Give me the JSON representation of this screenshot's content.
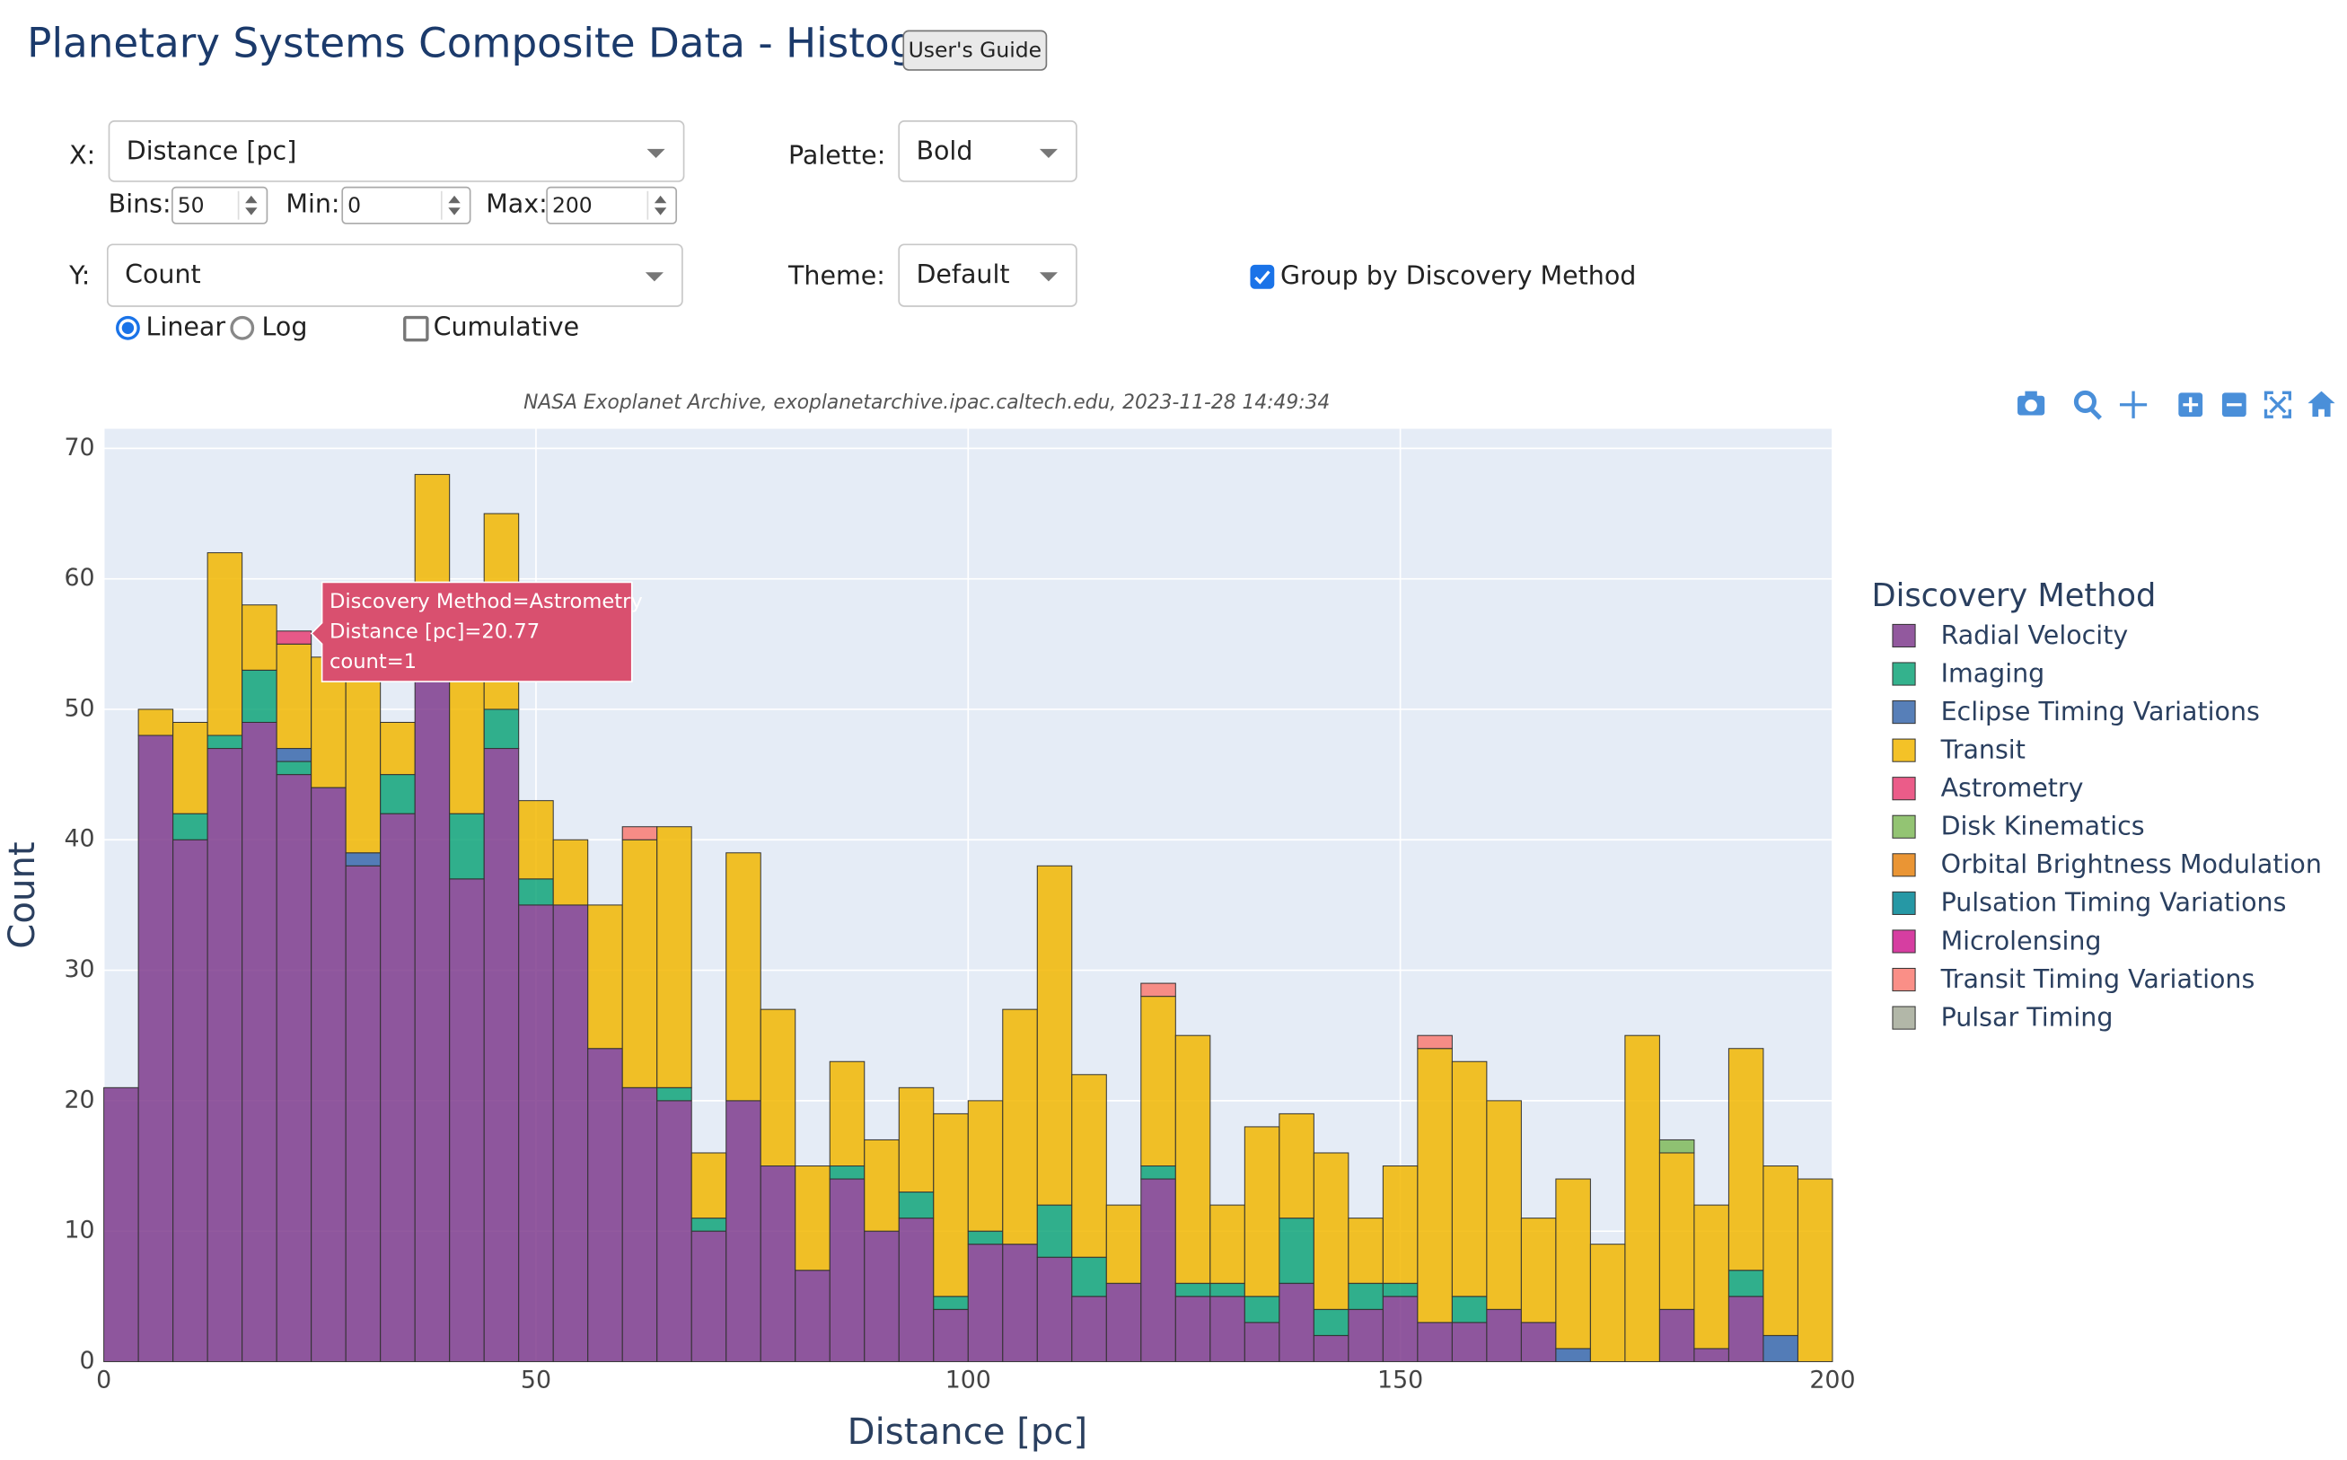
{
  "header": {
    "title": "Planetary Systems Composite Data - Histogram",
    "guide_button": "User's Guide"
  },
  "controls": {
    "x_label": "X:",
    "x_value": "Distance [pc]",
    "bins_label": "Bins:",
    "bins": 50,
    "min_label": "Min:",
    "min": 0,
    "max_label": "Max:",
    "max": 200,
    "palette_label": "Palette:",
    "palette": "Bold",
    "y_label": "Y:",
    "y_value": "Count",
    "linear": "Linear",
    "log": "Log",
    "cumulative": "Cumulative",
    "theme_label": "Theme:",
    "theme": "Default",
    "group": "Group by Discovery Method"
  },
  "chart_data": {
    "type": "histogram",
    "stacked": true,
    "subtitle": "NASA Exoplanet Archive, exoplanetarchive.ipac.caltech.edu, 2023-11-28 14:49:34",
    "x_label": "Distance [pc]",
    "y_label": "Count",
    "legend_title": "Discovery Method",
    "legend_position": "right",
    "xlim": [
      0,
      200
    ],
    "xticks": [
      0,
      50,
      100,
      150,
      200
    ],
    "ylim": [
      0,
      71.5
    ],
    "yticks": [
      0,
      10,
      20,
      30,
      40,
      50,
      60,
      70
    ],
    "grid": true,
    "bins": [
      0,
      4,
      8,
      12,
      16,
      20,
      24,
      28,
      32,
      36,
      40,
      44,
      48,
      52,
      56,
      60,
      64,
      68,
      72,
      76,
      80,
      84,
      88,
      92,
      96,
      100,
      104,
      108,
      112,
      116,
      120,
      124,
      128,
      132,
      136,
      140,
      144,
      148,
      152,
      156,
      160,
      164,
      168,
      172,
      176,
      180,
      184,
      188,
      192,
      196,
      200
    ],
    "series": [
      {
        "name": "Radial Velocity",
        "color": "#7F3C8D",
        "values": [
          21,
          48,
          40,
          47,
          49,
          45,
          44,
          38,
          42,
          53,
          37,
          47,
          35,
          35,
          24,
          21,
          20,
          10,
          20,
          15,
          7,
          14,
          10,
          11,
          4,
          9,
          9,
          8,
          5,
          6,
          14,
          5,
          5,
          3,
          6,
          2,
          4,
          5,
          3,
          3,
          4,
          3,
          0,
          0,
          0,
          4,
          1,
          5,
          0,
          0
        ]
      },
      {
        "name": "Imaging",
        "color": "#11A579",
        "values": [
          0,
          0,
          2,
          1,
          4,
          1,
          0,
          0,
          3,
          0,
          5,
          3,
          2,
          0,
          0,
          0,
          1,
          1,
          0,
          0,
          0,
          1,
          0,
          2,
          1,
          1,
          0,
          4,
          3,
          0,
          1,
          1,
          1,
          2,
          5,
          2,
          2,
          1,
          0,
          2,
          0,
          0,
          0,
          0,
          0,
          0,
          0,
          2,
          0,
          0
        ]
      },
      {
        "name": "Eclipse Timing Variations",
        "color": "#3969AC",
        "values": [
          0,
          0,
          0,
          0,
          0,
          1,
          0,
          1,
          0,
          0,
          0,
          0,
          0,
          0,
          0,
          0,
          0,
          0,
          0,
          0,
          0,
          0,
          0,
          0,
          0,
          0,
          0,
          0,
          0,
          0,
          0,
          0,
          0,
          0,
          0,
          0,
          0,
          0,
          0,
          0,
          0,
          0,
          1,
          0,
          0,
          0,
          0,
          0,
          2,
          0
        ]
      },
      {
        "name": "Transit",
        "color": "#F2B701",
        "values": [
          0,
          2,
          7,
          14,
          5,
          8,
          10,
          15,
          4,
          15,
          13,
          15,
          6,
          5,
          11,
          19,
          20,
          5,
          19,
          12,
          8,
          8,
          7,
          8,
          14,
          10,
          18,
          26,
          14,
          6,
          13,
          19,
          6,
          13,
          8,
          12,
          5,
          9,
          21,
          18,
          16,
          8,
          13,
          9,
          25,
          12,
          11,
          17,
          13,
          14
        ]
      },
      {
        "name": "Astrometry",
        "color": "#E73F74",
        "values": [
          0,
          0,
          0,
          0,
          0,
          1,
          0,
          0,
          0,
          0,
          0,
          0,
          0,
          0,
          0,
          0,
          0,
          0,
          0,
          0,
          0,
          0,
          0,
          0,
          0,
          0,
          0,
          0,
          0,
          0,
          0,
          0,
          0,
          0,
          0,
          0,
          0,
          0,
          0,
          0,
          0,
          0,
          0,
          0,
          0,
          0,
          0,
          0,
          0,
          0
        ]
      },
      {
        "name": "Disk Kinematics",
        "color": "#80BA5A",
        "values": [
          0,
          0,
          0,
          0,
          0,
          0,
          0,
          0,
          0,
          0,
          0,
          0,
          0,
          0,
          0,
          0,
          0,
          0,
          0,
          0,
          0,
          0,
          0,
          0,
          0,
          0,
          0,
          0,
          0,
          0,
          0,
          0,
          0,
          0,
          0,
          0,
          0,
          0,
          0,
          0,
          0,
          0,
          0,
          0,
          0,
          1,
          0,
          0,
          0,
          0
        ]
      },
      {
        "name": "Orbital Brightness Modulation",
        "color": "#E68310",
        "values": [
          0,
          0,
          0,
          0,
          0,
          0,
          0,
          0,
          0,
          0,
          0,
          0,
          0,
          0,
          0,
          0,
          0,
          0,
          0,
          0,
          0,
          0,
          0,
          0,
          0,
          0,
          0,
          0,
          0,
          0,
          0,
          0,
          0,
          0,
          0,
          0,
          0,
          0,
          0,
          0,
          0,
          0,
          0,
          0,
          0,
          0,
          0,
          0,
          0,
          0
        ]
      },
      {
        "name": "Pulsation Timing Variations",
        "color": "#008695",
        "values": [
          0,
          0,
          0,
          0,
          0,
          0,
          0,
          0,
          0,
          0,
          0,
          0,
          0,
          0,
          0,
          0,
          0,
          0,
          0,
          0,
          0,
          0,
          0,
          0,
          0,
          0,
          0,
          0,
          0,
          0,
          0,
          0,
          0,
          0,
          0,
          0,
          0,
          0,
          0,
          0,
          0,
          0,
          0,
          0,
          0,
          0,
          0,
          0,
          0,
          0
        ]
      },
      {
        "name": "Microlensing",
        "color": "#CF1C90",
        "values": [
          0,
          0,
          0,
          0,
          0,
          0,
          0,
          0,
          0,
          0,
          0,
          0,
          0,
          0,
          0,
          0,
          0,
          0,
          0,
          0,
          0,
          0,
          0,
          0,
          0,
          0,
          0,
          0,
          0,
          0,
          0,
          0,
          0,
          0,
          0,
          0,
          0,
          0,
          0,
          0,
          0,
          0,
          0,
          0,
          0,
          0,
          0,
          0,
          0,
          0
        ]
      },
      {
        "name": "Transit Timing Variations",
        "color": "#F97B72",
        "values": [
          0,
          0,
          0,
          0,
          0,
          0,
          0,
          0,
          0,
          0,
          0,
          0,
          0,
          0,
          0,
          1,
          0,
          0,
          0,
          0,
          0,
          0,
          0,
          0,
          0,
          0,
          0,
          0,
          0,
          0,
          1,
          0,
          0,
          0,
          0,
          0,
          0,
          0,
          1,
          0,
          0,
          0,
          0,
          0,
          0,
          0,
          0,
          0,
          0,
          0
        ]
      },
      {
        "name": "Pulsar Timing",
        "color": "#A5AA99",
        "values": [
          0,
          0,
          0,
          0,
          0,
          0,
          0,
          0,
          0,
          0,
          0,
          0,
          0,
          0,
          0,
          0,
          0,
          0,
          0,
          0,
          0,
          0,
          0,
          0,
          0,
          0,
          0,
          0,
          0,
          0,
          0,
          0,
          0,
          0,
          0,
          0,
          0,
          0,
          0,
          0,
          0,
          0,
          0,
          0,
          0,
          0,
          0,
          0,
          0,
          0
        ]
      }
    ],
    "tooltip": {
      "lines": [
        "Discovery Method=Astrometry",
        "Distance [pc]=20.77",
        "count=1"
      ]
    }
  }
}
